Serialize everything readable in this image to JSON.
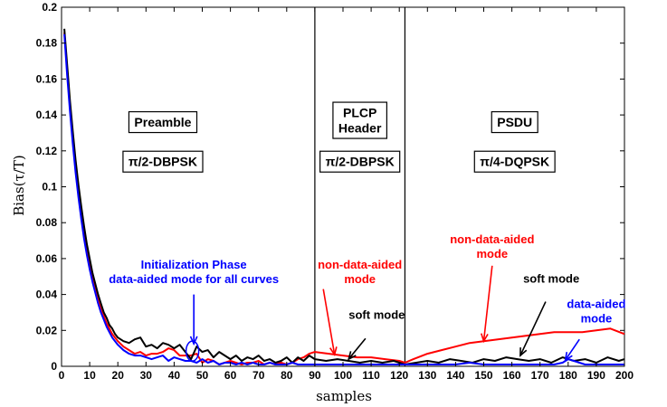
{
  "chart_data": {
    "type": "line",
    "xlabel": "samples",
    "ylabel": "Bias(τ/T)",
    "xlim": [
      0,
      200
    ],
    "ylim": [
      0,
      0.2
    ],
    "xticks": [
      0,
      10,
      20,
      30,
      40,
      50,
      60,
      70,
      80,
      90,
      100,
      110,
      120,
      130,
      140,
      150,
      160,
      170,
      180,
      190,
      200
    ],
    "yticks": [
      0,
      0.02,
      0.04,
      0.06,
      0.08,
      0.1,
      0.12,
      0.14,
      0.16,
      0.18,
      0.2
    ],
    "grid": false,
    "section_dividers": [
      90,
      122
    ],
    "section_boxes": [
      {
        "label_lines": [
          "Preamble"
        ],
        "at": [
          36,
          0.136
        ]
      },
      {
        "label_lines": [
          "π/2-DBPSK"
        ],
        "at": [
          36,
          0.114
        ]
      },
      {
        "label_lines": [
          "PLCP",
          "Header"
        ],
        "at": [
          106,
          0.137
        ]
      },
      {
        "label_lines": [
          "π/2-DBPSK"
        ],
        "at": [
          106,
          0.114
        ]
      },
      {
        "label_lines": [
          "PSDU"
        ],
        "at": [
          161,
          0.136
        ]
      },
      {
        "label_lines": [
          "π/4-DQPSK"
        ],
        "at": [
          161,
          0.114
        ]
      }
    ],
    "annotations": [
      {
        "lines": [
          "Initialization Phase",
          "data-aided mode for all curves"
        ],
        "color": "#0000ff",
        "text_at": [
          47,
          0.0545
        ],
        "arrow_from": [
          47,
          0.04
        ],
        "arrow_to": [
          47,
          0.0125
        ],
        "ellipse": [
          46.5,
          0.0085
        ]
      },
      {
        "lines": [
          "non-data-aided",
          "mode"
        ],
        "color": "#ff0000",
        "text_at": [
          106,
          0.0545
        ],
        "arrow_from": [
          93,
          0.043
        ],
        "arrow_to": [
          97,
          0.0065
        ]
      },
      {
        "lines": [
          "soft mode"
        ],
        "color": "#000000",
        "text_at": [
          112,
          0.0265
        ],
        "arrow_from": [
          108,
          0.0155
        ],
        "arrow_to": [
          102,
          0.004
        ]
      },
      {
        "lines": [
          "non-data-aided",
          "mode"
        ],
        "color": "#ff0000",
        "text_at": [
          153,
          0.0685
        ],
        "arrow_from": [
          153,
          0.056
        ],
        "arrow_to": [
          150,
          0.014
        ]
      },
      {
        "lines": [
          "soft mode"
        ],
        "color": "#000000",
        "text_at": [
          174,
          0.0465
        ],
        "arrow_from": [
          172,
          0.036
        ],
        "arrow_to": [
          163,
          0.006
        ]
      },
      {
        "lines": [
          "data-aided",
          "mode"
        ],
        "color": "#0000ff",
        "text_at": [
          190,
          0.0325
        ],
        "arrow_from": [
          184,
          0.015
        ],
        "arrow_to": [
          179,
          0.0035
        ]
      }
    ],
    "series": [
      {
        "color": "#ff0000",
        "x": [
          1,
          2,
          3,
          4,
          5,
          6,
          7,
          8,
          9,
          10,
          11,
          12,
          13,
          14,
          15,
          16,
          17,
          18,
          19,
          20,
          22,
          24,
          26,
          28,
          30,
          32,
          34,
          36,
          38,
          40,
          42,
          44,
          46,
          48,
          50,
          52,
          54,
          56,
          58,
          60,
          62,
          64,
          66,
          68,
          70,
          72,
          74,
          76,
          78,
          80,
          82,
          84,
          86,
          88,
          90,
          95,
          100,
          105,
          110,
          115,
          120,
          122,
          125,
          130,
          135,
          140,
          145,
          150,
          155,
          160,
          165,
          170,
          175,
          180,
          185,
          190,
          195,
          200
        ],
        "y": [
          0.186,
          0.165,
          0.145,
          0.128,
          0.112,
          0.098,
          0.086,
          0.075,
          0.065,
          0.057,
          0.05,
          0.043,
          0.037,
          0.032,
          0.028,
          0.024,
          0.021,
          0.018,
          0.016,
          0.014,
          0.011,
          0.009,
          0.007,
          0.008,
          0.006,
          0.007,
          0.007,
          0.008,
          0.01,
          0.009,
          0.006,
          0.006,
          0.006,
          0.007,
          0.002,
          0.004,
          0.003,
          0.001,
          0.002,
          0.003,
          0.002,
          0.001,
          0.002,
          0.002,
          0.003,
          0.001,
          0.002,
          0.001,
          0.002,
          0.001,
          0.002,
          0.004,
          0.005,
          0.007,
          0.008,
          0.007,
          0.006,
          0.005,
          0.005,
          0.004,
          0.003,
          0.002,
          0.004,
          0.007,
          0.009,
          0.011,
          0.013,
          0.014,
          0.015,
          0.016,
          0.017,
          0.018,
          0.019,
          0.019,
          0.019,
          0.02,
          0.021,
          0.018
        ]
      },
      {
        "color": "#000000",
        "x": [
          1,
          2,
          3,
          4,
          5,
          6,
          7,
          8,
          9,
          10,
          11,
          12,
          13,
          14,
          15,
          16,
          17,
          18,
          19,
          20,
          22,
          24,
          26,
          28,
          30,
          32,
          34,
          36,
          38,
          40,
          42,
          44,
          46,
          48,
          50,
          52,
          54,
          56,
          58,
          60,
          62,
          64,
          66,
          68,
          70,
          72,
          74,
          76,
          78,
          80,
          82,
          84,
          86,
          88,
          90,
          94,
          98,
          102,
          106,
          110,
          114,
          118,
          122,
          126,
          130,
          134,
          138,
          142,
          146,
          150,
          154,
          158,
          162,
          166,
          170,
          174,
          178,
          182,
          186,
          190,
          194,
          198,
          200
        ],
        "y": [
          0.188,
          0.168,
          0.148,
          0.131,
          0.115,
          0.101,
          0.089,
          0.078,
          0.068,
          0.06,
          0.052,
          0.046,
          0.04,
          0.035,
          0.03,
          0.027,
          0.023,
          0.021,
          0.018,
          0.016,
          0.014,
          0.013,
          0.015,
          0.016,
          0.011,
          0.012,
          0.01,
          0.013,
          0.012,
          0.01,
          0.012,
          0.008,
          0.004,
          0.011,
          0.008,
          0.009,
          0.005,
          0.008,
          0.006,
          0.004,
          0.006,
          0.003,
          0.005,
          0.004,
          0.006,
          0.003,
          0.004,
          0.002,
          0.003,
          0.005,
          0.002,
          0.005,
          0.003,
          0.006,
          0.004,
          0.003,
          0.004,
          0.003,
          0.002,
          0.003,
          0.002,
          0.003,
          0.001,
          0.002,
          0.003,
          0.002,
          0.004,
          0.003,
          0.002,
          0.004,
          0.003,
          0.005,
          0.004,
          0.003,
          0.004,
          0.002,
          0.005,
          0.003,
          0.004,
          0.002,
          0.005,
          0.003,
          0.004
        ]
      },
      {
        "color": "#0000ff",
        "x": [
          1,
          2,
          3,
          4,
          5,
          6,
          7,
          8,
          9,
          10,
          11,
          12,
          13,
          14,
          15,
          16,
          17,
          18,
          19,
          20,
          22,
          24,
          26,
          28,
          30,
          32,
          34,
          36,
          38,
          40,
          42,
          44,
          46,
          48,
          50,
          52,
          54,
          56,
          58,
          60,
          62,
          64,
          66,
          68,
          70,
          72,
          74,
          76,
          78,
          80,
          82,
          84,
          86,
          88,
          90,
          95,
          100,
          105,
          110,
          115,
          120,
          125,
          130,
          135,
          140,
          145,
          150,
          155,
          160,
          165,
          170,
          175,
          178,
          180,
          182,
          184,
          186,
          190,
          195,
          200
        ],
        "y": [
          0.185,
          0.162,
          0.142,
          0.124,
          0.108,
          0.094,
          0.082,
          0.071,
          0.062,
          0.054,
          0.047,
          0.041,
          0.035,
          0.03,
          0.026,
          0.022,
          0.019,
          0.016,
          0.014,
          0.012,
          0.009,
          0.007,
          0.006,
          0.006,
          0.005,
          0.004,
          0.005,
          0.006,
          0.003,
          0.005,
          0.004,
          0.003,
          0.003,
          0.002,
          0.004,
          0.002,
          0.003,
          0.001,
          0.002,
          0.002,
          0.001,
          0.002,
          0.001,
          0.002,
          0.001,
          0.001,
          0.002,
          0.001,
          0.001,
          0.001,
          0.002,
          0.001,
          0.001,
          0.001,
          0.001,
          0.001,
          0.001,
          0.001,
          0.001,
          0.001,
          0.001,
          0.001,
          0.001,
          0.001,
          0.001,
          0.002,
          0.001,
          0.001,
          0.001,
          0.001,
          0.001,
          0.001,
          0.002,
          0.004,
          0.003,
          0.002,
          0.001,
          0.001,
          0.001,
          0.001
        ]
      }
    ]
  }
}
